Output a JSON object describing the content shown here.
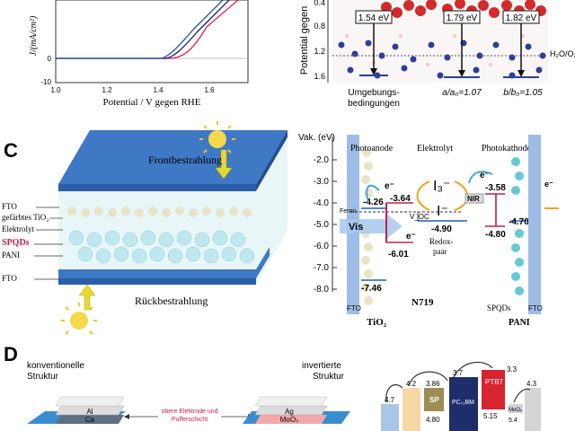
{
  "panel_b": {
    "xlabel": "Potential / V gegen RHE",
    "ylabel": "J/(mA/cm²)",
    "x_ticks": [
      "1.0",
      "1.2",
      "1.4",
      "1.6"
    ],
    "y_ticks": [
      "0",
      "-10"
    ]
  },
  "panel_b_right": {
    "ylabel": "Potential gegen",
    "y_ticks": [
      "0.4",
      "0.8",
      "1.2",
      "1.6"
    ],
    "boxes": [
      "1.54 eV",
      "1.79 eV",
      "1.82 eV"
    ],
    "ref": "H₂O/O₂",
    "xl1": "Umgebungs-",
    "xl2": "bedingungen",
    "xl3": "a/a₀=1.07",
    "xl4": "b/b₀=1.05"
  },
  "panel_c": {
    "letter": "C",
    "front": "Frontbestrahlung",
    "back": "Rückbestrahlung",
    "layers": [
      "FTO",
      "gefärbtes TiO₂",
      "Elektrolyt",
      "SPQDs",
      "PANI",
      "FTO"
    ]
  },
  "panel_c_right": {
    "axis": "Vak. (eV)",
    "ticks": [
      "-2.0",
      "-3.0",
      "-4.0",
      "-5.0",
      "-6.0",
      "-7.0",
      "-8.0"
    ],
    "photoanode": "Photoanode",
    "elektrolyt": "Elektrolyt",
    "photokathode": "Photokathode",
    "fermi": "Fermi",
    "vis": "Vis",
    "nir": "NIR",
    "voc": "V_OC",
    "redox1": "Redox-",
    "redox2": "paar",
    "n719": "N719",
    "tio2": "TiO₂",
    "pani": "PANI",
    "spqds": "SPQDs",
    "fto1": "FTO",
    "fto2": "FTO",
    "e": "e⁻",
    "i3": "I₃⁻",
    "i": "I⁻",
    "v426": "-4.26",
    "v364": "-3.64",
    "v601": "-6.01",
    "v746": "-7.46",
    "v490": "-4.90",
    "v358": "-3.58",
    "v470": "-4.70",
    "v480": "-4.80"
  },
  "panel_d": {
    "letter": "D",
    "konv1": "konventionelle",
    "konv2": "Struktur",
    "inv1": "invertierte",
    "inv2": "Struktur",
    "al": "Al",
    "ca": "Ca",
    "ag": "Ag",
    "moo3": "MoO₃",
    "mid1": "obere Elektrode und",
    "mid2": "Pufferschicht",
    "v47": "4.7",
    "v42": "4.2",
    "v386": "3.86",
    "sp": "SP",
    "v480": "4.80",
    "v37": "3.7",
    "pcbm": "PC₇₁BM",
    "ptb7": "PTB7",
    "v33": "3.3",
    "v515": "5.15",
    "moox": "MoOₓ",
    "v54": "5.4",
    "v43": "4.3"
  }
}
